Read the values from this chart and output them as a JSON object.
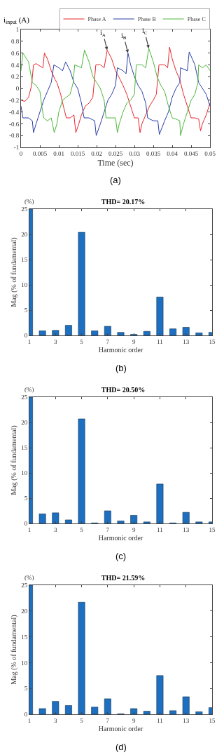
{
  "chart_data": [
    {
      "type": "line",
      "ylabel": "i$_{input}$ (A)",
      "xlabel": "Time (sec)",
      "xlim": [
        0,
        0.05
      ],
      "ylim": [
        -1,
        1
      ],
      "xticks": [
        0,
        0.005,
        0.01,
        0.015,
        0.02,
        0.025,
        0.03,
        0.035,
        0.04,
        0.045,
        0.05
      ],
      "yticks": [
        -1,
        -0.8,
        -0.6,
        -0.4,
        -0.2,
        0,
        0.2,
        0.4,
        0.6,
        0.8,
        1
      ],
      "grid": false,
      "legend": "top right",
      "marker": "none",
      "line_style": "solid",
      "series": [
        {
          "name": "Phase A",
          "color": "#e8262b",
          "x": [
            0,
            0.001,
            0.002,
            0.0028,
            0.0033,
            0.004,
            0.005,
            0.0058,
            0.0062,
            0.007,
            0.008,
            0.009,
            0.0095,
            0.0105,
            0.0112,
            0.012,
            0.013,
            0.014,
            0.0145,
            0.0152,
            0.016,
            0.017,
            0.018,
            0.019,
            0.0198,
            0.021,
            0.022,
            0.0228,
            0.024,
            0.025,
            0.026,
            0.027,
            0.028,
            0.029,
            0.03,
            0.031,
            0.0315,
            0.032,
            0.033,
            0.034,
            0.035,
            0.0358,
            0.0365,
            0.038,
            0.0388,
            0.0393,
            0.04,
            0.041,
            0.042,
            0.043,
            0.044,
            0.045,
            0.046,
            0.047,
            0.0475,
            0.048,
            0.049,
            0.05
          ],
          "values": [
            -0.2,
            -0.22,
            -0.15,
            0.05,
            0.4,
            0.42,
            0.38,
            0.35,
            0.6,
            0.5,
            0.3,
            0.15,
            0.1,
            -0.1,
            -0.3,
            -0.5,
            -0.5,
            -0.45,
            -0.75,
            -0.62,
            -0.45,
            -0.3,
            -0.25,
            -0.15,
            0.4,
            0.4,
            0.35,
            0.65,
            0.5,
            0.3,
            0.18,
            0.05,
            -0.1,
            -0.3,
            -0.5,
            -0.5,
            -0.75,
            -0.6,
            -0.45,
            -0.3,
            -0.2,
            -0.1,
            0.4,
            0.4,
            0.35,
            0.7,
            0.5,
            0.3,
            0.15,
            -0.1,
            -0.3,
            -0.5,
            -0.5,
            -0.52,
            -0.72,
            -0.6,
            -0.45,
            -0.25
          ]
        },
        {
          "name": "Phase B",
          "color": "#2b3fa8",
          "x": [
            0,
            0.0005,
            0.002,
            0.003,
            0.0033,
            0.004,
            0.005,
            0.006,
            0.007,
            0.008,
            0.0087,
            0.01,
            0.011,
            0.0118,
            0.013,
            0.014,
            0.015,
            0.016,
            0.0167,
            0.018,
            0.0195,
            0.0199,
            0.021,
            0.022,
            0.023,
            0.024,
            0.025,
            0.0255,
            0.027,
            0.0278,
            0.0283,
            0.029,
            0.03,
            0.031,
            0.032,
            0.033,
            0.0335,
            0.035,
            0.0362,
            0.0366,
            0.038,
            0.039,
            0.04,
            0.041,
            0.042,
            0.0422,
            0.044,
            0.0445,
            0.046,
            0.047,
            0.048,
            0.049,
            0.05
          ],
          "values": [
            -0.3,
            -0.5,
            -0.5,
            -0.55,
            -0.75,
            -0.6,
            -0.4,
            -0.2,
            -0.05,
            0.1,
            0.4,
            0.35,
            0.3,
            0.45,
            0.3,
            0.1,
            0,
            -0.25,
            -0.5,
            -0.5,
            -0.55,
            -0.8,
            -0.6,
            -0.4,
            -0.2,
            -0.1,
            0.05,
            0.35,
            0.3,
            0.25,
            0.6,
            0.4,
            0.2,
            0.05,
            -0.05,
            -0.25,
            -0.5,
            -0.55,
            -0.55,
            -0.78,
            -0.55,
            -0.4,
            -0.15,
            0,
            0.1,
            0.35,
            0.3,
            0.62,
            0.4,
            0.1,
            0,
            -0.1,
            -0.3
          ]
        },
        {
          "name": "Phase C",
          "color": "#4cb83a",
          "x": [
            0,
            0.0005,
            0.001,
            0.002,
            0.003,
            0.004,
            0.005,
            0.0055,
            0.006,
            0.007,
            0.008,
            0.0088,
            0.0095,
            0.01,
            0.011,
            0.012,
            0.013,
            0.0138,
            0.0142,
            0.016,
            0.0168,
            0.018,
            0.019,
            0.02,
            0.021,
            0.022,
            0.0225,
            0.024,
            0.025,
            0.0255,
            0.026,
            0.027,
            0.028,
            0.029,
            0.03,
            0.0305,
            0.032,
            0.033,
            0.0338,
            0.035,
            0.036,
            0.037,
            0.038,
            0.039,
            0.04,
            0.041,
            0.042,
            0.0422,
            0.043,
            0.044,
            0.045,
            0.046,
            0.0468,
            0.047,
            0.048,
            0.049,
            0.05
          ],
          "values": [
            0.3,
            0.6,
            0.55,
            0.45,
            0.1,
            0.05,
            -0.05,
            -0.3,
            -0.5,
            -0.55,
            -0.5,
            -0.75,
            -0.6,
            -0.4,
            -0.2,
            -0.15,
            -0.1,
            0.1,
            0.4,
            0.35,
            0.65,
            0.45,
            0.2,
            0.1,
            0,
            -0.2,
            -0.5,
            -0.5,
            -0.5,
            -0.75,
            -0.6,
            -0.4,
            -0.25,
            -0.2,
            -0.1,
            0.4,
            0.4,
            0.35,
            0.68,
            0.45,
            0.2,
            0.05,
            -0.05,
            -0.3,
            -0.5,
            -0.52,
            -0.55,
            -0.8,
            -0.6,
            -0.4,
            -0.2,
            -0.1,
            0.1,
            0.4,
            0.35,
            0.4,
            0.3
          ]
        }
      ],
      "annotations": [
        {
          "text": "i$_{A}$",
          "x": 0.0228,
          "y": 0.65
        },
        {
          "text": "i$_{B}$",
          "x": 0.0283,
          "y": 0.6
        },
        {
          "text": "i$_{C}$",
          "x": 0.0338,
          "y": 0.68
        },
        "(a)"
      ]
    },
    {
      "type": "bar",
      "title": "THD= 20.17%",
      "xlabel": "Harmonic order",
      "ylabel": "Mag (% of fundamental)",
      "x": [
        1,
        2,
        3,
        4,
        5,
        6,
        7,
        8,
        9,
        10,
        11,
        12,
        13,
        14,
        15
      ],
      "values": [
        25,
        0.9,
        1.0,
        2.0,
        20.4,
        0.9,
        1.8,
        0.6,
        0.2,
        0.8,
        7.6,
        1.3,
        1.6,
        0.5,
        0.6
      ],
      "color": "#1c6fc1",
      "xlim": [
        1,
        15
      ],
      "xticks": [
        1,
        3,
        5,
        7,
        9,
        11,
        13,
        15
      ],
      "ylim": [
        0,
        25
      ],
      "yticks": [
        0,
        5,
        10,
        15,
        20,
        25
      ],
      "grid": false,
      "annotations": [
        "(%)",
        "(b)"
      ]
    },
    {
      "type": "bar",
      "title": "THD= 20.50%",
      "xlabel": "Harmonic order",
      "ylabel": "Mag (% of fundamental)",
      "x": [
        1,
        2,
        3,
        4,
        5,
        6,
        7,
        8,
        9,
        10,
        11,
        12,
        13,
        14,
        15
      ],
      "values": [
        25,
        1.9,
        2.1,
        0.7,
        20.7,
        0.1,
        2.5,
        0.5,
        1.6,
        0.3,
        7.8,
        0.1,
        2.2,
        0.3,
        0.3
      ],
      "color": "#1c6fc1",
      "xlim": [
        1,
        15
      ],
      "xticks": [
        1,
        3,
        5,
        7,
        9,
        11,
        13,
        15
      ],
      "ylim": [
        0,
        25
      ],
      "yticks": [
        0,
        5,
        10,
        15,
        20,
        25
      ],
      "grid": false,
      "annotations": [
        "(%)",
        "(c)"
      ]
    },
    {
      "type": "bar",
      "title": "THD= 21.59%",
      "xlabel": "Harmonic order",
      "ylabel": "Mag (% of fundamental)",
      "x": [
        1,
        2,
        3,
        4,
        5,
        6,
        7,
        8,
        9,
        10,
        11,
        12,
        13,
        14,
        15
      ],
      "values": [
        25,
        1.1,
        2.5,
        1.7,
        21.7,
        1.4,
        3.0,
        0.1,
        1.1,
        0.6,
        7.5,
        0.7,
        3.4,
        0.5,
        1.3
      ],
      "color": "#1c6fc1",
      "xlim": [
        1,
        15
      ],
      "xticks": [
        1,
        3,
        5,
        7,
        9,
        11,
        13,
        15
      ],
      "ylim": [
        0,
        25
      ],
      "yticks": [
        0,
        5,
        10,
        15,
        20,
        25
      ],
      "grid": false,
      "annotations": [
        "(%)",
        "(d)"
      ]
    }
  ]
}
